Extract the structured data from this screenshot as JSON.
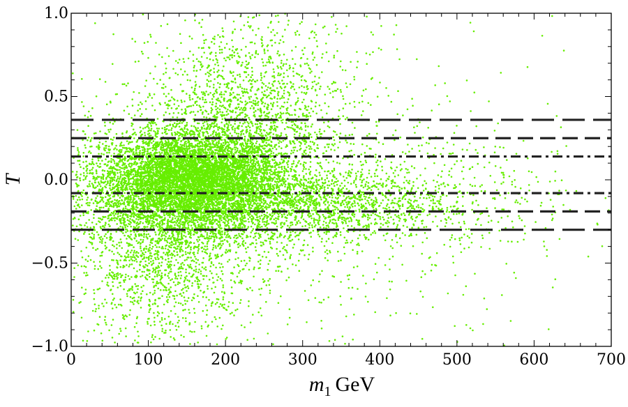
{
  "chart_data": {
    "type": "scatter",
    "xlabel": "m",
    "xlabel_subscript": "1",
    "xlabel_unit": "GeV",
    "ylabel": "T",
    "xlim": [
      0,
      700
    ],
    "ylim": [
      -1.0,
      1.0
    ],
    "x_ticks": [
      0,
      100,
      200,
      300,
      400,
      500,
      600,
      700
    ],
    "x_tick_labels": [
      "0",
      "100",
      "200",
      "300",
      "400",
      "500",
      "600",
      "700"
    ],
    "y_ticks": [
      1.0,
      0.5,
      0.0,
      -0.5,
      -1.0
    ],
    "y_tick_labels": [
      "1.0",
      "0.5",
      "0.0",
      "−0.5",
      "−1.0"
    ],
    "grid": false,
    "point_color": "#66ee00",
    "horizontal_lines": [
      {
        "y": 0.36,
        "style": "long-dash",
        "color": "#222222"
      },
      {
        "y": 0.25,
        "style": "dash",
        "color": "#222222"
      },
      {
        "y": 0.14,
        "style": "dash-dot",
        "color": "#222222"
      },
      {
        "y": -0.08,
        "style": "dash-dot",
        "color": "#222222"
      },
      {
        "y": -0.19,
        "style": "dash",
        "color": "#222222"
      },
      {
        "y": -0.3,
        "style": "long-dash",
        "color": "#222222"
      }
    ],
    "point_density_clusters": [
      {
        "x_center": 160,
        "y_center": 0.0,
        "x_spread": 55,
        "y_spread": 0.13,
        "count": 5200
      },
      {
        "x_center": 140,
        "y_center": -0.05,
        "x_spread": 80,
        "y_spread": 0.22,
        "count": 2800
      },
      {
        "x_center": 230,
        "y_center": 0.35,
        "x_spread": 65,
        "y_spread": 0.3,
        "count": 1800
      },
      {
        "x_center": 120,
        "y_center": -0.45,
        "x_spread": 60,
        "y_spread": 0.28,
        "count": 1400
      },
      {
        "x_center": 330,
        "y_center": -0.15,
        "x_spread": 80,
        "y_spread": 0.1,
        "count": 1100
      },
      {
        "x_center": 260,
        "y_center": -0.05,
        "x_spread": 150,
        "y_spread": 0.5,
        "count": 800
      },
      {
        "x_center": 480,
        "y_center": -0.15,
        "x_spread": 90,
        "y_spread": 0.18,
        "count": 300
      },
      {
        "x_center": 400,
        "y_center": 0.1,
        "x_spread": 200,
        "y_spread": 0.6,
        "count": 220
      }
    ]
  }
}
